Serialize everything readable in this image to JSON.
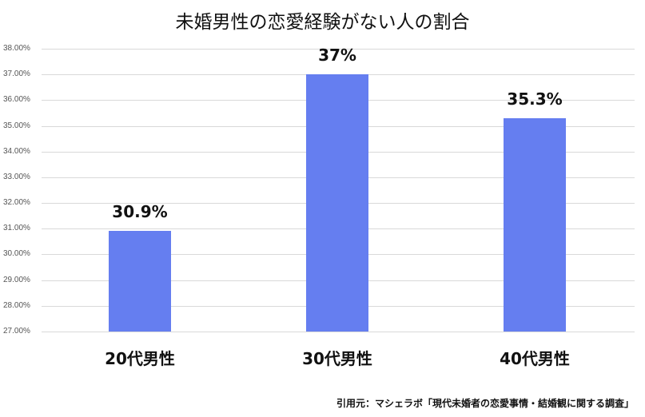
{
  "chart_data": {
    "type": "bar",
    "title": "未婚男性の恋愛経験がない人の割合",
    "categories": [
      "20代男性",
      "30代男性",
      "40代男性"
    ],
    "values": [
      30.9,
      37,
      35.3
    ],
    "data_labels": [
      "30.9%",
      "37%",
      "35.3%"
    ],
    "xlabel": "",
    "ylabel": "",
    "ylim": [
      27,
      38
    ],
    "yticks": [
      "38.00%",
      "37.00%",
      "36.00%",
      "35.00%",
      "34.00%",
      "33.00%",
      "32.00%",
      "31.00%",
      "30.00%",
      "29.00%",
      "28.00%",
      "27.00%"
    ],
    "grid": true,
    "legend": "none",
    "bar_color": "#657ef0",
    "source": "引用元：マシェラボ「現代未婚者の恋愛事情・結婚観に関する調査」"
  }
}
